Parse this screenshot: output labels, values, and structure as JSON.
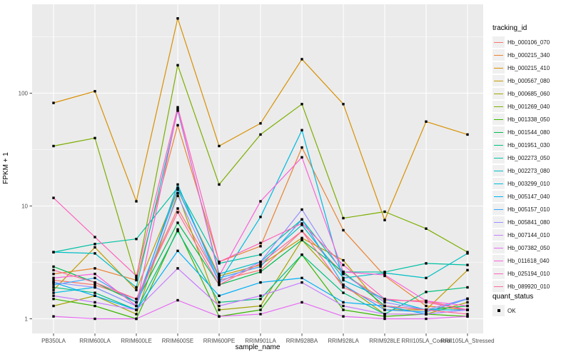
{
  "chart_data": {
    "type": "line",
    "title": "",
    "xlabel": "sample_name",
    "ylabel": "FPKM + 1",
    "y_scale": "log10",
    "y_ticks": [
      "1",
      "10",
      "100"
    ],
    "ylim": [
      0.95,
      620
    ],
    "grid": true,
    "legend_position": "right",
    "panel_bg": "#EBEBEB",
    "grid_color": "#FFFFFF",
    "point_color": "#000000",
    "tick_label_color": "#4D4D4D",
    "categories": [
      "PB350LA",
      "RRIM600LA",
      "RRIM600LE",
      "RRIM600SE",
      "RRIM600PE",
      "RRIM901LA",
      "RRIM928BA",
      "RRIM928LA",
      "RRIM928LE",
      "RRII105LA_Control",
      "RRII105LA_Stressed"
    ],
    "legend": {
      "color_title": "tracking_id",
      "shape_title": "quant_status",
      "shape_entries": [
        "OK"
      ]
    },
    "series": [
      {
        "name": "Hb_000106_070",
        "color": "#F8766D",
        "values": [
          2.2,
          2.0,
          1.5,
          9.5,
          2.2,
          2.7,
          6.0,
          2.5,
          1.46,
          1.44,
          1.2
        ]
      },
      {
        "name": "Hb_000215_340",
        "color": "#EA8331",
        "values": [
          2.5,
          2.8,
          2.2,
          52,
          3.2,
          4.4,
          33,
          6.1,
          2.4,
          1.3,
          1.2
        ]
      },
      {
        "name": "Hb_000215_410",
        "color": "#D89000",
        "values": [
          82,
          104,
          11,
          460,
          34,
          54,
          200,
          80,
          7.5,
          56,
          43
        ]
      },
      {
        "name": "Hb_000567_080",
        "color": "#C09B00",
        "values": [
          1.8,
          4.3,
          1.8,
          14,
          2.4,
          3.0,
          5.2,
          3.3,
          1.2,
          1.2,
          2.7
        ]
      },
      {
        "name": "Hb_000685_060",
        "color": "#A3A500",
        "values": [
          1.3,
          1.6,
          1.1,
          13,
          1.2,
          1.3,
          5.0,
          2.0,
          1.1,
          1.1,
          1.4
        ]
      },
      {
        "name": "Hb_001269_040",
        "color": "#7CAE00",
        "values": [
          34,
          40,
          2.3,
          177,
          15.5,
          43,
          80,
          7.8,
          8.9,
          6.3,
          3.9
        ]
      },
      {
        "name": "Hb_001338_050",
        "color": "#39B600",
        "values": [
          1.5,
          1.3,
          1.0,
          6.2,
          1.05,
          1.2,
          3.7,
          1.2,
          1.05,
          1.1,
          1.05
        ]
      },
      {
        "name": "Hb_001544_080",
        "color": "#00BB4E",
        "values": [
          2.9,
          2.1,
          1.4,
          7.1,
          2.0,
          2.6,
          5.0,
          2.6,
          1.3,
          1.2,
          1.3
        ]
      },
      {
        "name": "Hb_001951_030",
        "color": "#00BF7D",
        "values": [
          1.9,
          1.7,
          1.2,
          6.0,
          1.4,
          1.5,
          3.7,
          1.7,
          1.1,
          1.73,
          1.9
        ]
      },
      {
        "name": "Hb_002273_050",
        "color": "#00C1A3",
        "values": [
          3.9,
          4.6,
          5.1,
          14.5,
          3.1,
          3.7,
          7.6,
          2.6,
          2.6,
          3.1,
          3.0
        ]
      },
      {
        "name": "Hb_002273_080",
        "color": "#00BFC4",
        "values": [
          3.9,
          3.8,
          1.9,
          70,
          2.5,
          3.2,
          6.8,
          2.3,
          2.55,
          2.3,
          3.8
        ]
      },
      {
        "name": "Hb_003299_010",
        "color": "#00BAE0",
        "values": [
          1.7,
          1.9,
          1.3,
          15.5,
          2.1,
          8.0,
          47,
          2.2,
          1.5,
          1.2,
          1.2
        ]
      },
      {
        "name": "Hb_005147_040",
        "color": "#00B0F6",
        "values": [
          2.1,
          1.6,
          1.2,
          4.0,
          1.6,
          2.1,
          2.3,
          1.4,
          1.3,
          1.1,
          1.2
        ]
      },
      {
        "name": "Hb_005157_010",
        "color": "#35A2FF",
        "values": [
          2.0,
          2.3,
          1.4,
          14,
          2.3,
          2.9,
          7.6,
          2.0,
          1.2,
          1.15,
          1.5
        ]
      },
      {
        "name": "Hb_005841_080",
        "color": "#9590FF",
        "values": [
          2.1,
          1.9,
          1.3,
          12.3,
          2.1,
          3.2,
          9.3,
          2.5,
          1.4,
          1.2,
          1.51
        ]
      },
      {
        "name": "Hb_007144_010",
        "color": "#C77CFF",
        "values": [
          1.6,
          1.4,
          1.2,
          2.8,
          1.3,
          1.6,
          2.1,
          1.3,
          1.1,
          1.1,
          1.2
        ]
      },
      {
        "name": "Hb_007382_050",
        "color": "#E76BF3",
        "values": [
          1.05,
          1.0,
          1.0,
          1.46,
          1.05,
          1.1,
          1.4,
          1.05,
          1.0,
          1.0,
          1.05
        ]
      },
      {
        "name": "Hb_011618_040",
        "color": "#FA62DB",
        "values": [
          2.3,
          2.5,
          1.3,
          72,
          2.4,
          11,
          27,
          2.6,
          2.45,
          1.44,
          1.3
        ]
      },
      {
        "name": "Hb_025194_010",
        "color": "#FF62BC",
        "values": [
          11.8,
          5.3,
          2.4,
          75,
          3.2,
          4.7,
          7.0,
          3.0,
          1.5,
          1.4,
          1.2
        ]
      },
      {
        "name": "Hb_089920_010",
        "color": "#FF6A98",
        "values": [
          2.7,
          2.1,
          1.5,
          8.8,
          2.0,
          3.1,
          6.0,
          1.9,
          1.3,
          1.2,
          1.1
        ]
      }
    ]
  }
}
